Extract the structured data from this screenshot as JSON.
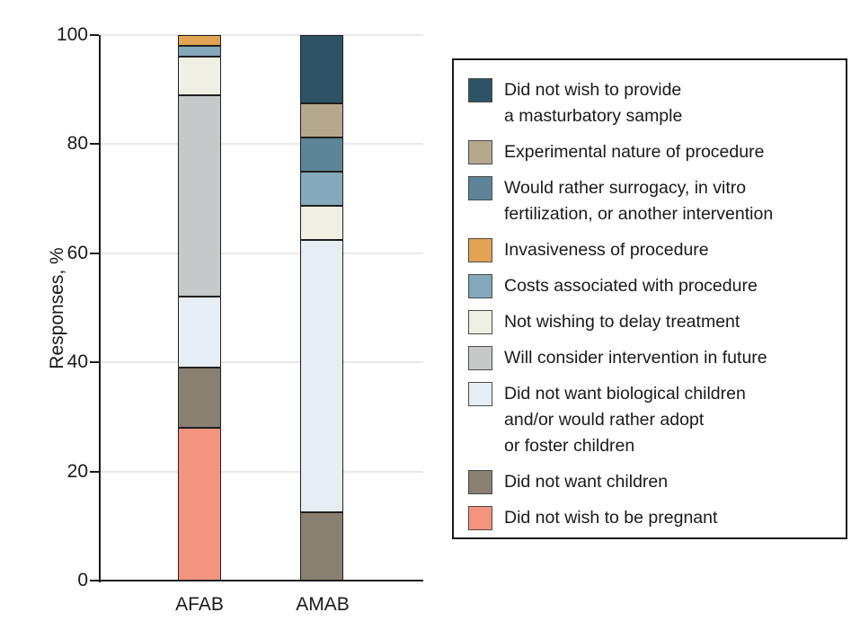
{
  "chart_data": {
    "type": "bar",
    "stacked": true,
    "title": "",
    "ylabel": "Responses, %",
    "xlabel": "",
    "ylim": [
      0,
      100
    ],
    "yticks": [
      0,
      20,
      40,
      60,
      80,
      100
    ],
    "grid": true,
    "legend_position": "right",
    "categories": [
      "AFAB",
      "AMAB"
    ],
    "series": [
      {
        "name": "Did not wish to be pregnant",
        "legend_lines": [
          "Did not wish to be pregnant"
        ],
        "color": "#f29480",
        "values": [
          28,
          0
        ]
      },
      {
        "name": "Did not want children",
        "legend_lines": [
          "Did not want children"
        ],
        "color": "#8a8071",
        "values": [
          11,
          12.5
        ]
      },
      {
        "name": "Did not want biological children and/or would rather adopt or foster children",
        "legend_lines": [
          "Did not want biological children",
          "and/or would rather adopt",
          "or foster children"
        ],
        "color": "#e7eef3",
        "values": [
          13,
          50
        ]
      },
      {
        "name": "Will consider intervention in future",
        "legend_lines": [
          "Will consider intervention in future"
        ],
        "color": "#c7c8ca",
        "values": [
          37,
          0
        ]
      },
      {
        "name": "Not wishing to delay treatment",
        "legend_lines": [
          "Not wishing to delay treatment"
        ],
        "color": "#f0efe3",
        "values": [
          7,
          6.25
        ]
      },
      {
        "name": "Costs associated with procedure",
        "legend_lines": [
          "Costs associated with procedure"
        ],
        "color": "#85a8ba",
        "values": [
          2,
          6.25
        ]
      },
      {
        "name": "Invasiveness of procedure",
        "legend_lines": [
          "Invasiveness of procedure"
        ],
        "color": "#e2a355",
        "values": [
          2,
          0
        ]
      },
      {
        "name": "Would rather surrogacy, in vitro fertilization, or another intervention",
        "legend_lines": [
          "Would rather surrogacy, in vitro",
          "fertilization, or another intervention"
        ],
        "color": "#5e8597",
        "values": [
          0,
          6.25
        ]
      },
      {
        "name": "Experimental nature of procedure",
        "legend_lines": [
          "Experimental nature of procedure"
        ],
        "color": "#b5a88f",
        "values": [
          0,
          6.25
        ]
      },
      {
        "name": "Did not wish to provide a masturbatory sample",
        "legend_lines": [
          "Did not wish to provide",
          "a masturbatory sample"
        ],
        "color": "#2e5365",
        "values": [
          0,
          12.5
        ]
      }
    ],
    "legend_order": "reverse-of-stack"
  },
  "colors": {
    "axis": "#1a1a1a",
    "gridline": "#e8e8e8",
    "bar_outline": "#1f1f1f",
    "background": "#ffffff",
    "legend_border": "#1a1a1a",
    "swatch_border": "#4a4a4a"
  }
}
